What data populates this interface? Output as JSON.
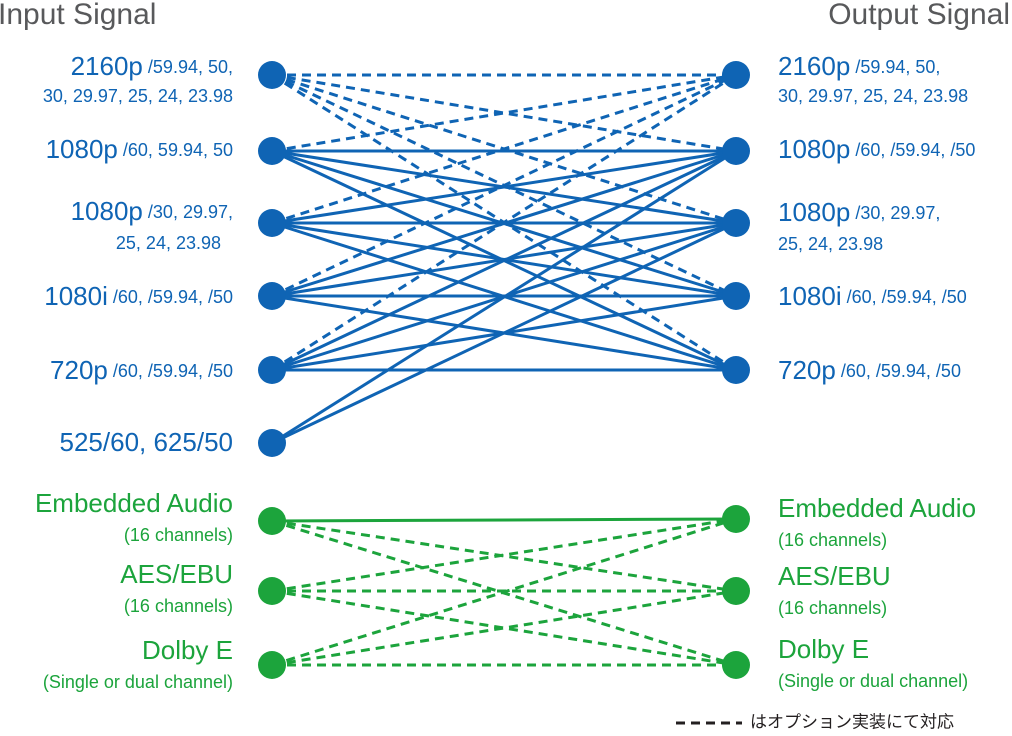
{
  "header": {
    "input_title": "Input Signal",
    "output_title": "Output Signal"
  },
  "inputs": {
    "video": [
      {
        "label": "2160p",
        "rates": [
          "/59.94, 50,",
          "30, 29.97, 25, 24, 23.98"
        ]
      },
      {
        "label": "1080p",
        "rates": [
          "/60, 59.94, 50"
        ]
      },
      {
        "label": "1080p",
        "rates": [
          "/30, 29.97,",
          "25, 24, 23.98"
        ]
      },
      {
        "label": "1080i",
        "rates": [
          "/60, /59.94, /50"
        ]
      },
      {
        "label": "720p",
        "rates": [
          "/60, /59.94, /50"
        ]
      },
      {
        "label": "525/60, 625/50",
        "rates": []
      }
    ],
    "audio": [
      {
        "label": "Embedded Audio",
        "note": "(16 channels)"
      },
      {
        "label": "AES/EBU",
        "note": "(16 channels)"
      },
      {
        "label": "Dolby E",
        "note": "(Single or dual channel)"
      }
    ]
  },
  "outputs": {
    "video": [
      {
        "label": "2160p",
        "rates": [
          "/59.94, 50,",
          "30, 29.97, 25, 24, 23.98"
        ]
      },
      {
        "label": "1080p",
        "rates": [
          "/60, /59.94, /50"
        ]
      },
      {
        "label": "1080p",
        "rates": [
          "/30, 29.97,",
          "25, 24, 23.98"
        ]
      },
      {
        "label": "1080i",
        "rates": [
          "/60, /59.94, /50"
        ]
      },
      {
        "label": "720p",
        "rates": [
          "/60, /59.94, /50"
        ]
      }
    ],
    "audio": [
      {
        "label": "Embedded Audio",
        "note": "(16 channels)"
      },
      {
        "label": "AES/EBU",
        "note": "(16 channels)"
      },
      {
        "label": "Dolby E",
        "note": "(Single or dual channel)"
      }
    ]
  },
  "legend": {
    "dashed": "はオプション実装にて対応"
  }
}
